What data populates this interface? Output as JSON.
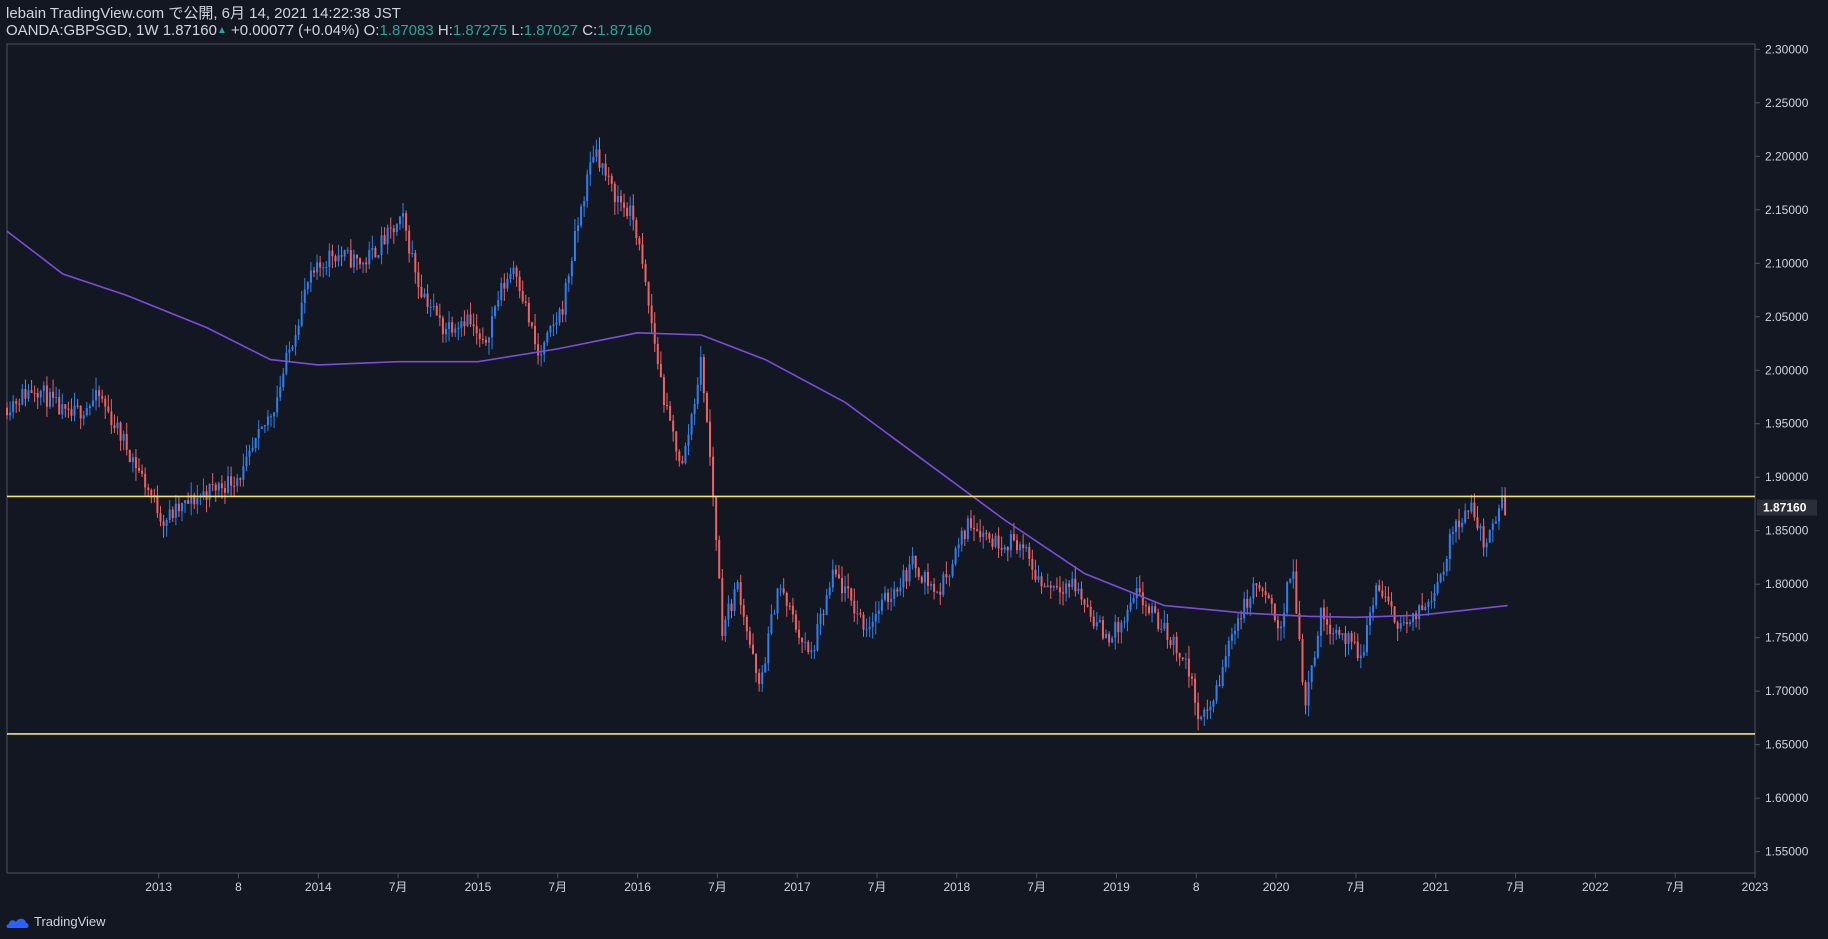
{
  "header": {
    "publish_line": "lebain TradingView.com で公開, 6月 14, 2021 14:22:38 JST",
    "symbol": "OANDA:GBPSGD, 1W",
    "last": "1.87160",
    "change": "+0.00077 (+0.04%)",
    "o_label": "O:",
    "o_value": "1.87083",
    "h_label": "H:",
    "h_value": "1.87275",
    "l_label": "L:",
    "l_value": "1.87027",
    "c_label": "C:",
    "c_value": "1.87160"
  },
  "footer": {
    "brand": "TradingView",
    "logo_icon": "tradingview-cloud-icon"
  },
  "colors": {
    "background": "#131722",
    "up": "#2f80ed",
    "down": "#ef6262",
    "ma": "#7b4ddb",
    "level": "#f2e27a",
    "text": "#d1d4dc",
    "grid_frame": "#4c525e"
  },
  "chart_data": {
    "type": "candlestick",
    "title": "",
    "xlabel": "",
    "ylabel": "",
    "timeframe": "1W",
    "x_range": [
      2012.05,
      2023.0
    ],
    "ylim": [
      1.53,
      2.305
    ],
    "y_ticks": [
      "2.30000",
      "2.25000",
      "2.20000",
      "2.15000",
      "2.10000",
      "2.05000",
      "2.00000",
      "1.95000",
      "1.90000",
      "1.85000",
      "1.80000",
      "1.75000",
      "1.70000",
      "1.65000",
      "1.60000",
      "1.55000"
    ],
    "x_ticks": [
      {
        "t": 2013.0,
        "label": "2013"
      },
      {
        "t": 2013.5,
        "label": "8"
      },
      {
        "t": 2014.0,
        "label": "2014"
      },
      {
        "t": 2014.5,
        "label": "7月"
      },
      {
        "t": 2015.0,
        "label": "2015"
      },
      {
        "t": 2015.5,
        "label": "7月"
      },
      {
        "t": 2016.0,
        "label": "2016"
      },
      {
        "t": 2016.5,
        "label": "7月"
      },
      {
        "t": 2017.0,
        "label": "2017"
      },
      {
        "t": 2017.5,
        "label": "7月"
      },
      {
        "t": 2018.0,
        "label": "2018"
      },
      {
        "t": 2018.5,
        "label": "7月"
      },
      {
        "t": 2019.0,
        "label": "2019"
      },
      {
        "t": 2019.5,
        "label": "8"
      },
      {
        "t": 2020.0,
        "label": "2020"
      },
      {
        "t": 2020.5,
        "label": "7月"
      },
      {
        "t": 2021.0,
        "label": "2021"
      },
      {
        "t": 2021.5,
        "label": "7月"
      },
      {
        "t": 2022.0,
        "label": "2022"
      },
      {
        "t": 2022.5,
        "label": "7月"
      },
      {
        "t": 2023.0,
        "label": "2023"
      }
    ],
    "price_path": [
      [
        2012.05,
        1.965
      ],
      [
        2012.25,
        1.985
      ],
      [
        2012.45,
        1.955
      ],
      [
        2012.65,
        1.975
      ],
      [
        2012.85,
        1.92
      ],
      [
        2013.05,
        1.86
      ],
      [
        2013.3,
        1.885
      ],
      [
        2013.45,
        1.895
      ],
      [
        2013.55,
        1.905
      ],
      [
        2013.75,
        1.97
      ],
      [
        2013.95,
        2.08
      ],
      [
        2014.1,
        2.11
      ],
      [
        2014.3,
        2.1
      ],
      [
        2014.55,
        2.14
      ],
      [
        2014.65,
        2.08
      ],
      [
        2014.8,
        2.04
      ],
      [
        2014.95,
        2.05
      ],
      [
        2015.05,
        2.02
      ],
      [
        2015.15,
        2.07
      ],
      [
        2015.25,
        2.1
      ],
      [
        2015.4,
        2.01
      ],
      [
        2015.55,
        2.06
      ],
      [
        2015.65,
        2.14
      ],
      [
        2015.75,
        2.21
      ],
      [
        2015.85,
        2.17
      ],
      [
        2016.0,
        2.14
      ],
      [
        2016.1,
        2.05
      ],
      [
        2016.2,
        1.96
      ],
      [
        2016.3,
        1.91
      ],
      [
        2016.42,
        2.01
      ],
      [
        2016.5,
        1.87
      ],
      [
        2016.55,
        1.76
      ],
      [
        2016.65,
        1.8
      ],
      [
        2016.78,
        1.7
      ],
      [
        2016.9,
        1.8
      ],
      [
        2017.1,
        1.73
      ],
      [
        2017.25,
        1.81
      ],
      [
        2017.45,
        1.76
      ],
      [
        2017.6,
        1.79
      ],
      [
        2017.75,
        1.82
      ],
      [
        2017.9,
        1.79
      ],
      [
        2018.1,
        1.86
      ],
      [
        2018.25,
        1.84
      ],
      [
        2018.4,
        1.84
      ],
      [
        2018.55,
        1.8
      ],
      [
        2018.75,
        1.8
      ],
      [
        2018.95,
        1.75
      ],
      [
        2019.05,
        1.76
      ],
      [
        2019.15,
        1.79
      ],
      [
        2019.3,
        1.76
      ],
      [
        2019.45,
        1.73
      ],
      [
        2019.55,
        1.67
      ],
      [
        2019.65,
        1.7
      ],
      [
        2019.75,
        1.76
      ],
      [
        2019.9,
        1.8
      ],
      [
        2020.05,
        1.76
      ],
      [
        2020.12,
        1.82
      ],
      [
        2020.2,
        1.69
      ],
      [
        2020.3,
        1.77
      ],
      [
        2020.45,
        1.75
      ],
      [
        2020.55,
        1.73
      ],
      [
        2020.65,
        1.8
      ],
      [
        2020.75,
        1.77
      ],
      [
        2020.85,
        1.76
      ],
      [
        2020.95,
        1.78
      ],
      [
        2021.05,
        1.81
      ],
      [
        2021.15,
        1.86
      ],
      [
        2021.25,
        1.87
      ],
      [
        2021.32,
        1.84
      ],
      [
        2021.38,
        1.85
      ],
      [
        2021.42,
        1.88
      ],
      [
        2021.45,
        1.8716
      ]
    ],
    "moving_average": [
      [
        2012.05,
        2.13
      ],
      [
        2012.4,
        2.09
      ],
      [
        2012.8,
        2.07
      ],
      [
        2013.3,
        2.04
      ],
      [
        2013.7,
        2.01
      ],
      [
        2014.0,
        2.005
      ],
      [
        2014.5,
        2.008
      ],
      [
        2015.0,
        2.008
      ],
      [
        2015.5,
        2.02
      ],
      [
        2016.0,
        2.035
      ],
      [
        2016.4,
        2.033
      ],
      [
        2016.8,
        2.01
      ],
      [
        2017.3,
        1.97
      ],
      [
        2017.8,
        1.915
      ],
      [
        2018.3,
        1.86
      ],
      [
        2018.8,
        1.81
      ],
      [
        2019.3,
        1.78
      ],
      [
        2019.6,
        1.776
      ],
      [
        2019.8,
        1.773
      ],
      [
        2020.2,
        1.77
      ],
      [
        2020.5,
        1.769
      ],
      [
        2020.9,
        1.771
      ],
      [
        2021.2,
        1.776
      ],
      [
        2021.45,
        1.78
      ]
    ],
    "horizontal_levels": [
      1.882,
      1.66
    ],
    "last_price_label": "1.87160",
    "last_price": 1.8716
  }
}
